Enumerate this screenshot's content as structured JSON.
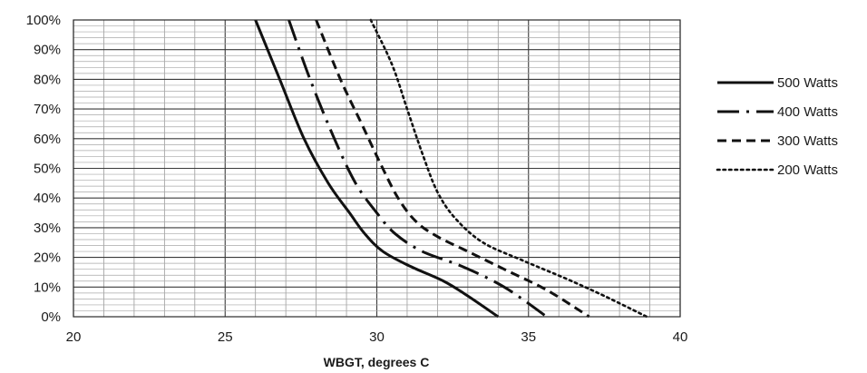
{
  "chart_data": {
    "type": "line",
    "title": "",
    "xlabel": "WBGT,  degrees C",
    "ylabel": "",
    "xlim": [
      20,
      40
    ],
    "ylim": [
      0,
      100
    ],
    "x_ticks": [
      20,
      25,
      30,
      35,
      40
    ],
    "x_tick_labels": [
      "20",
      "25",
      "30",
      "35",
      "40"
    ],
    "y_ticks": [
      0,
      10,
      20,
      30,
      40,
      50,
      60,
      70,
      80,
      90,
      100
    ],
    "y_tick_labels": [
      "0%",
      "10%",
      "20%",
      "30%",
      "40%",
      "50%",
      "60%",
      "70%",
      "80%",
      "90%",
      "100%"
    ],
    "grid": true,
    "legend_position": "right",
    "series": [
      {
        "name": "500 Watts",
        "line_style": "solid",
        "x": [
          26.0,
          26.8,
          27.6,
          28.4,
          29.1,
          29.6,
          30.2,
          31.1,
          32.2,
          33.0,
          34.0
        ],
        "y": [
          100,
          80,
          60,
          45,
          35,
          28,
          22,
          17,
          12,
          7,
          0
        ]
      },
      {
        "name": "400 Watts",
        "line_style": "long-dash-dot",
        "x": [
          27.1,
          27.8,
          28.6,
          29.3,
          30.0,
          30.6,
          31.5,
          32.8,
          34.2,
          35.6
        ],
        "y": [
          100,
          80,
          60,
          45,
          35,
          28,
          22,
          17,
          10,
          0
        ]
      },
      {
        "name": "300 Watts",
        "line_style": "dash",
        "x": [
          28.0,
          28.8,
          29.5,
          30.1,
          30.7,
          31.3,
          32.0,
          33.0,
          34.2,
          35.6,
          37.0
        ],
        "y": [
          100,
          80,
          65,
          52,
          40,
          32,
          27,
          22,
          16,
          9,
          0
        ]
      },
      {
        "name": "200 Watts",
        "line_style": "dotted",
        "x": [
          29.8,
          30.5,
          31.0,
          31.5,
          32.0,
          32.6,
          33.5,
          34.8,
          36.2,
          37.5,
          38.9
        ],
        "y": [
          100,
          85,
          70,
          55,
          42,
          33,
          25,
          19,
          13,
          7,
          0
        ]
      }
    ]
  }
}
